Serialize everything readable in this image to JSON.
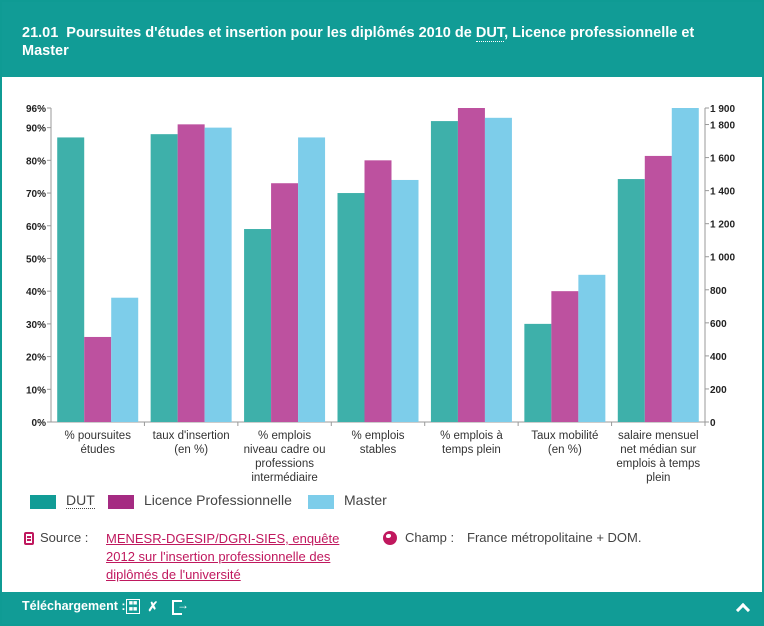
{
  "header": {
    "number": "21.01",
    "title_before": "Poursuites d'études et insertion pour les diplômés 2010 de ",
    "title_abbr": "DUT",
    "title_after": ", Licence professionnelle et Master"
  },
  "chart_data": {
    "type": "bar",
    "categories": [
      [
        "% poursuites",
        "études"
      ],
      [
        "taux d'insertion",
        "(en %)"
      ],
      [
        "% emplois",
        "niveau cadre ou",
        "professions",
        "intermédiaire"
      ],
      [
        "% emplois",
        "stables"
      ],
      [
        "% emplois à",
        "temps plein"
      ],
      [
        "Taux mobilité",
        "(en %)"
      ],
      [
        "salaire mensuel",
        "net médian sur",
        "emplois à temps",
        "plein"
      ]
    ],
    "series": [
      {
        "name": "DUT",
        "values": [
          87,
          88,
          59,
          70,
          92,
          30,
          1470
        ],
        "axis": [
          "left",
          "left",
          "left",
          "left",
          "left",
          "left",
          "right"
        ]
      },
      {
        "name": "Licence Professionnelle",
        "values": [
          26,
          91,
          73,
          80,
          96,
          40,
          1610
        ],
        "axis": [
          "left",
          "left",
          "left",
          "left",
          "left",
          "left",
          "right"
        ]
      },
      {
        "name": "Master",
        "values": [
          38,
          90,
          87,
          74,
          93,
          45,
          1900
        ],
        "axis": [
          "left",
          "left",
          "left",
          "left",
          "left",
          "left",
          "right"
        ]
      }
    ],
    "y_left": {
      "range": [
        0,
        96
      ],
      "ticks": [
        "0%",
        "10%",
        "20%",
        "30%",
        "40%",
        "50%",
        "60%",
        "70%",
        "80%",
        "90%",
        "96%"
      ],
      "tick_values": [
        0,
        10,
        20,
        30,
        40,
        50,
        60,
        70,
        80,
        90,
        96
      ]
    },
    "y_right": {
      "range": [
        0,
        1900
      ],
      "ticks": [
        "0",
        "200",
        "400",
        "600",
        "800",
        "1 000",
        "1 200",
        "1 400",
        "1 600",
        "1 800",
        "1 900"
      ],
      "tick_values": [
        0,
        200,
        400,
        600,
        800,
        1000,
        1200,
        1400,
        1600,
        1800,
        1900
      ]
    },
    "colors": [
      "#3eb0aa",
      "#bd519f",
      "#7dcdea"
    ],
    "grid": false,
    "legend": "bottom-left"
  },
  "legend": {
    "items": [
      {
        "label": "DUT",
        "color": "#119c96"
      },
      {
        "label": "Licence Professionnelle",
        "color": "#a52b82"
      },
      {
        "label": "Master",
        "color": "#7dcdea"
      }
    ]
  },
  "source": {
    "label": "Source :",
    "link_text": "MENESR-DGESIP/DGRI-SIES, enquête 2012 sur l'insertion professionnelle des diplômés de l'université"
  },
  "champ": {
    "label": "Champ :",
    "value": "France métropolitaine + DOM."
  },
  "footer": {
    "download_label": "Téléchargement :"
  }
}
